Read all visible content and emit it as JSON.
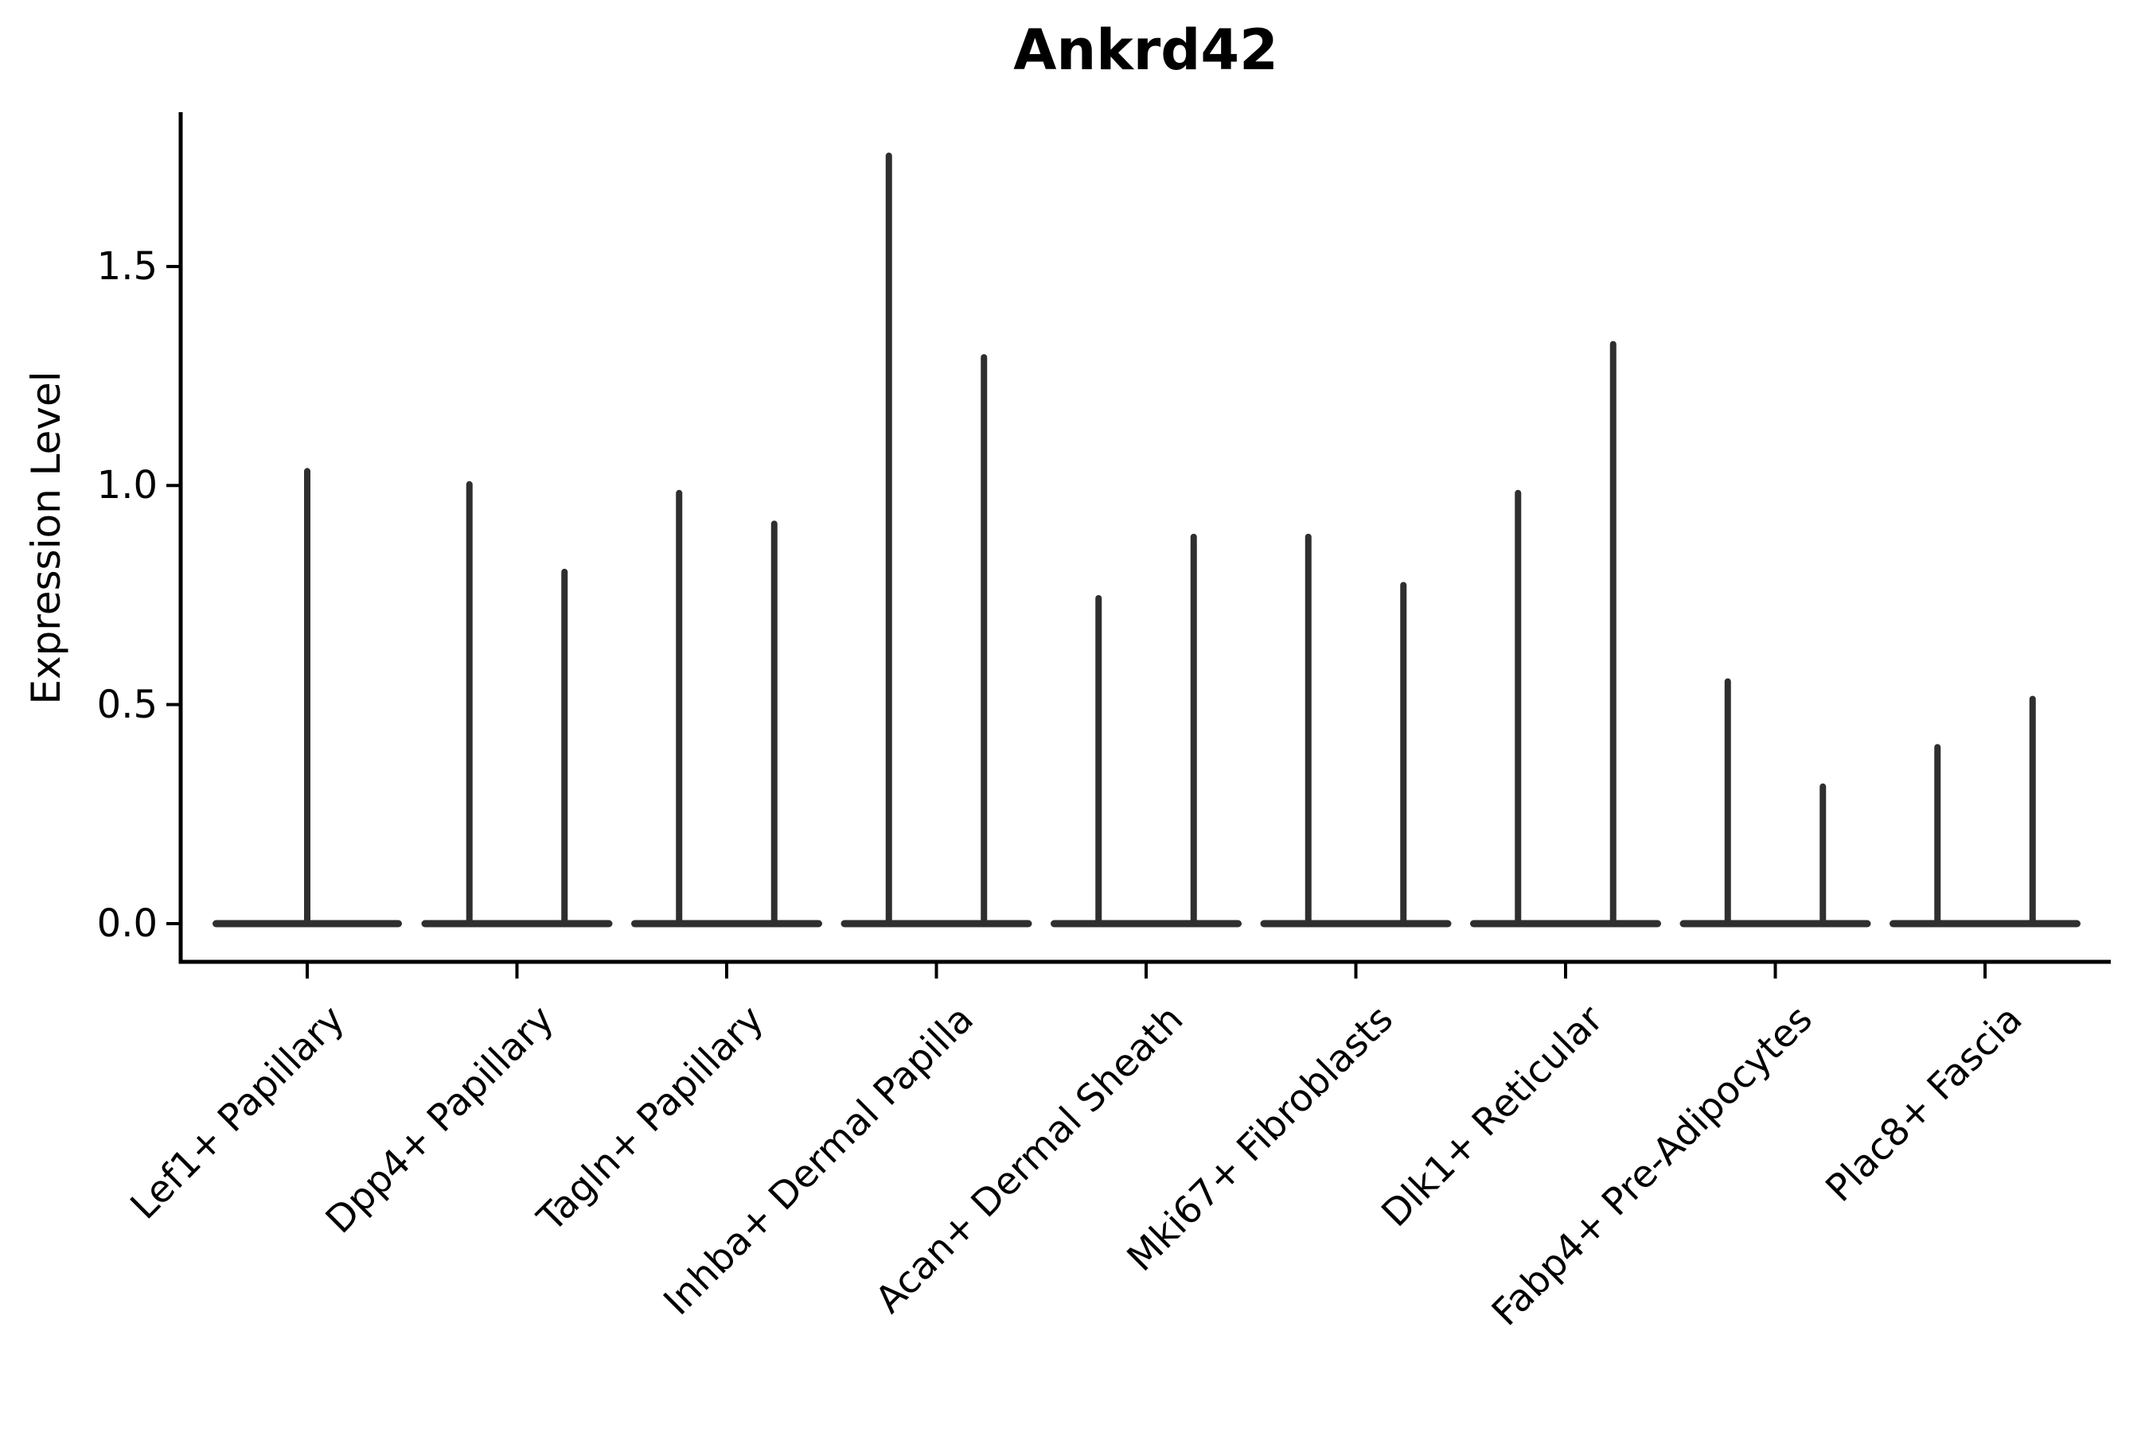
{
  "figure": {
    "background": "#ffffff"
  },
  "chart_data": {
    "type": "violin",
    "title": "Ankrd42",
    "ylabel": "Expression Level",
    "xlabel": "",
    "grid": false,
    "legend": null,
    "ylim": [
      -0.09,
      1.85
    ],
    "yticks": {
      "values": [
        0.0,
        0.5,
        1.0,
        1.5
      ],
      "labels": [
        "0.0",
        "0.5",
        "1.0",
        "1.5"
      ]
    },
    "colors": {
      "violin_stroke": "#2f2f2f",
      "axis": "#000000",
      "text": "#000000"
    },
    "categories": [
      "Lef1+ Papillary",
      "Dpp4+ Papillary",
      "Tagln+ Papillary",
      "Inhba+ Dermal Papilla",
      "Acan+ Dermal Sheath",
      "Mki67+ Fibroblasts",
      "Dlk1+ Reticular",
      "Fabp4+ Pre-Adipocytes",
      "Plac8+ Fascia"
    ],
    "violins": [
      {
        "category": "Lef1+ Papillary",
        "max_values": [
          1.04
        ]
      },
      {
        "category": "Dpp4+ Papillary",
        "max_values": [
          1.01,
          0.81
        ]
      },
      {
        "category": "Tagln+ Papillary",
        "max_values": [
          0.99,
          0.92
        ]
      },
      {
        "category": "Inhba+ Dermal Papilla",
        "max_values": [
          1.76,
          1.3
        ]
      },
      {
        "category": "Acan+ Dermal Sheath",
        "max_values": [
          0.75,
          0.89
        ]
      },
      {
        "category": "Mki67+ Fibroblasts",
        "max_values": [
          0.89,
          0.78
        ]
      },
      {
        "category": "Dlk1+ Reticular",
        "max_values": [
          0.99,
          1.33
        ]
      },
      {
        "category": "Fabp4+ Pre-Adipocytes",
        "max_values": [
          0.56,
          0.32
        ]
      },
      {
        "category": "Plac8+ Fascia",
        "max_values": [
          0.41,
          0.52
        ]
      }
    ],
    "distribution_note": ""
  }
}
